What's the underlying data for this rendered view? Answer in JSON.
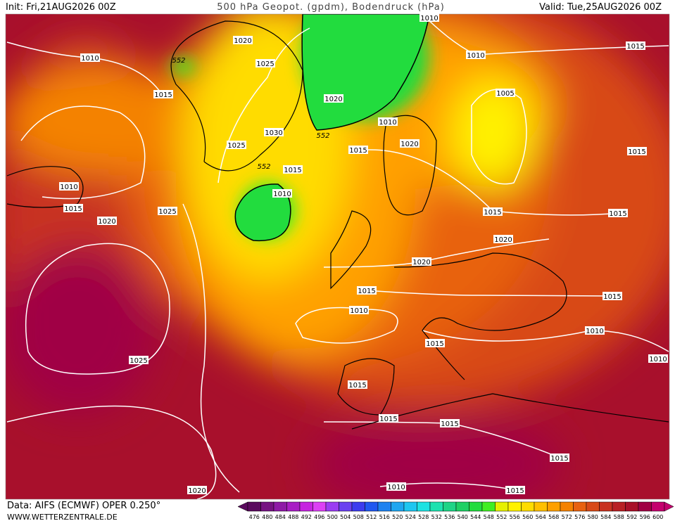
{
  "header": {
    "init": "Init: Fri,21AUG2026 00Z",
    "title": "500 hPa Geopot. (gpdm), Bodendruck (hPa)",
    "valid": "Valid: Tue,25AUG2026 00Z"
  },
  "footer": {
    "data": "Data: AIFS (ECMWF) OPER 0.250°",
    "site": "WWW.WETTERZENTRALE.DE"
  },
  "isobar_labels": [
    1010,
    1020,
    1010,
    552,
    1025,
    1010,
    1015,
    1015,
    1005,
    1020,
    1030,
    552,
    1010,
    1025,
    1020,
    1015,
    1015,
    552,
    1015,
    1010,
    1010,
    1015,
    1025,
    1015,
    1015,
    1020,
    1020,
    1020,
    1015,
    1015,
    1010,
    1010,
    1015,
    1025,
    1010,
    1015,
    1015,
    1015,
    1015,
    1020,
    1010,
    1015
  ],
  "colorbar": {
    "values": [
      476,
      480,
      484,
      488,
      492,
      496,
      500,
      504,
      508,
      512,
      516,
      520,
      524,
      528,
      532,
      536,
      540,
      544,
      548,
      552,
      556,
      560,
      564,
      568,
      572,
      576,
      580,
      584,
      588,
      592,
      596,
      600
    ],
    "colors": [
      "#5a0a5e",
      "#761382",
      "#8e1aa6",
      "#a81ec4",
      "#c624e0",
      "#dc40f4",
      "#9a3cf2",
      "#6a40f0",
      "#3c3cee",
      "#2058f0",
      "#1e82f0",
      "#1ea6f0",
      "#1ec6f0",
      "#1ee2e2",
      "#1ee2b0",
      "#1ed486",
      "#1ed064",
      "#22dc3e",
      "#40ee22",
      "#e6f000",
      "#fff200",
      "#ffdc00",
      "#ffc000",
      "#ffa000",
      "#f48200",
      "#e86210",
      "#d84a18",
      "#c83220",
      "#b82024",
      "#a81028",
      "#a00044",
      "#c4006e"
    ]
  }
}
